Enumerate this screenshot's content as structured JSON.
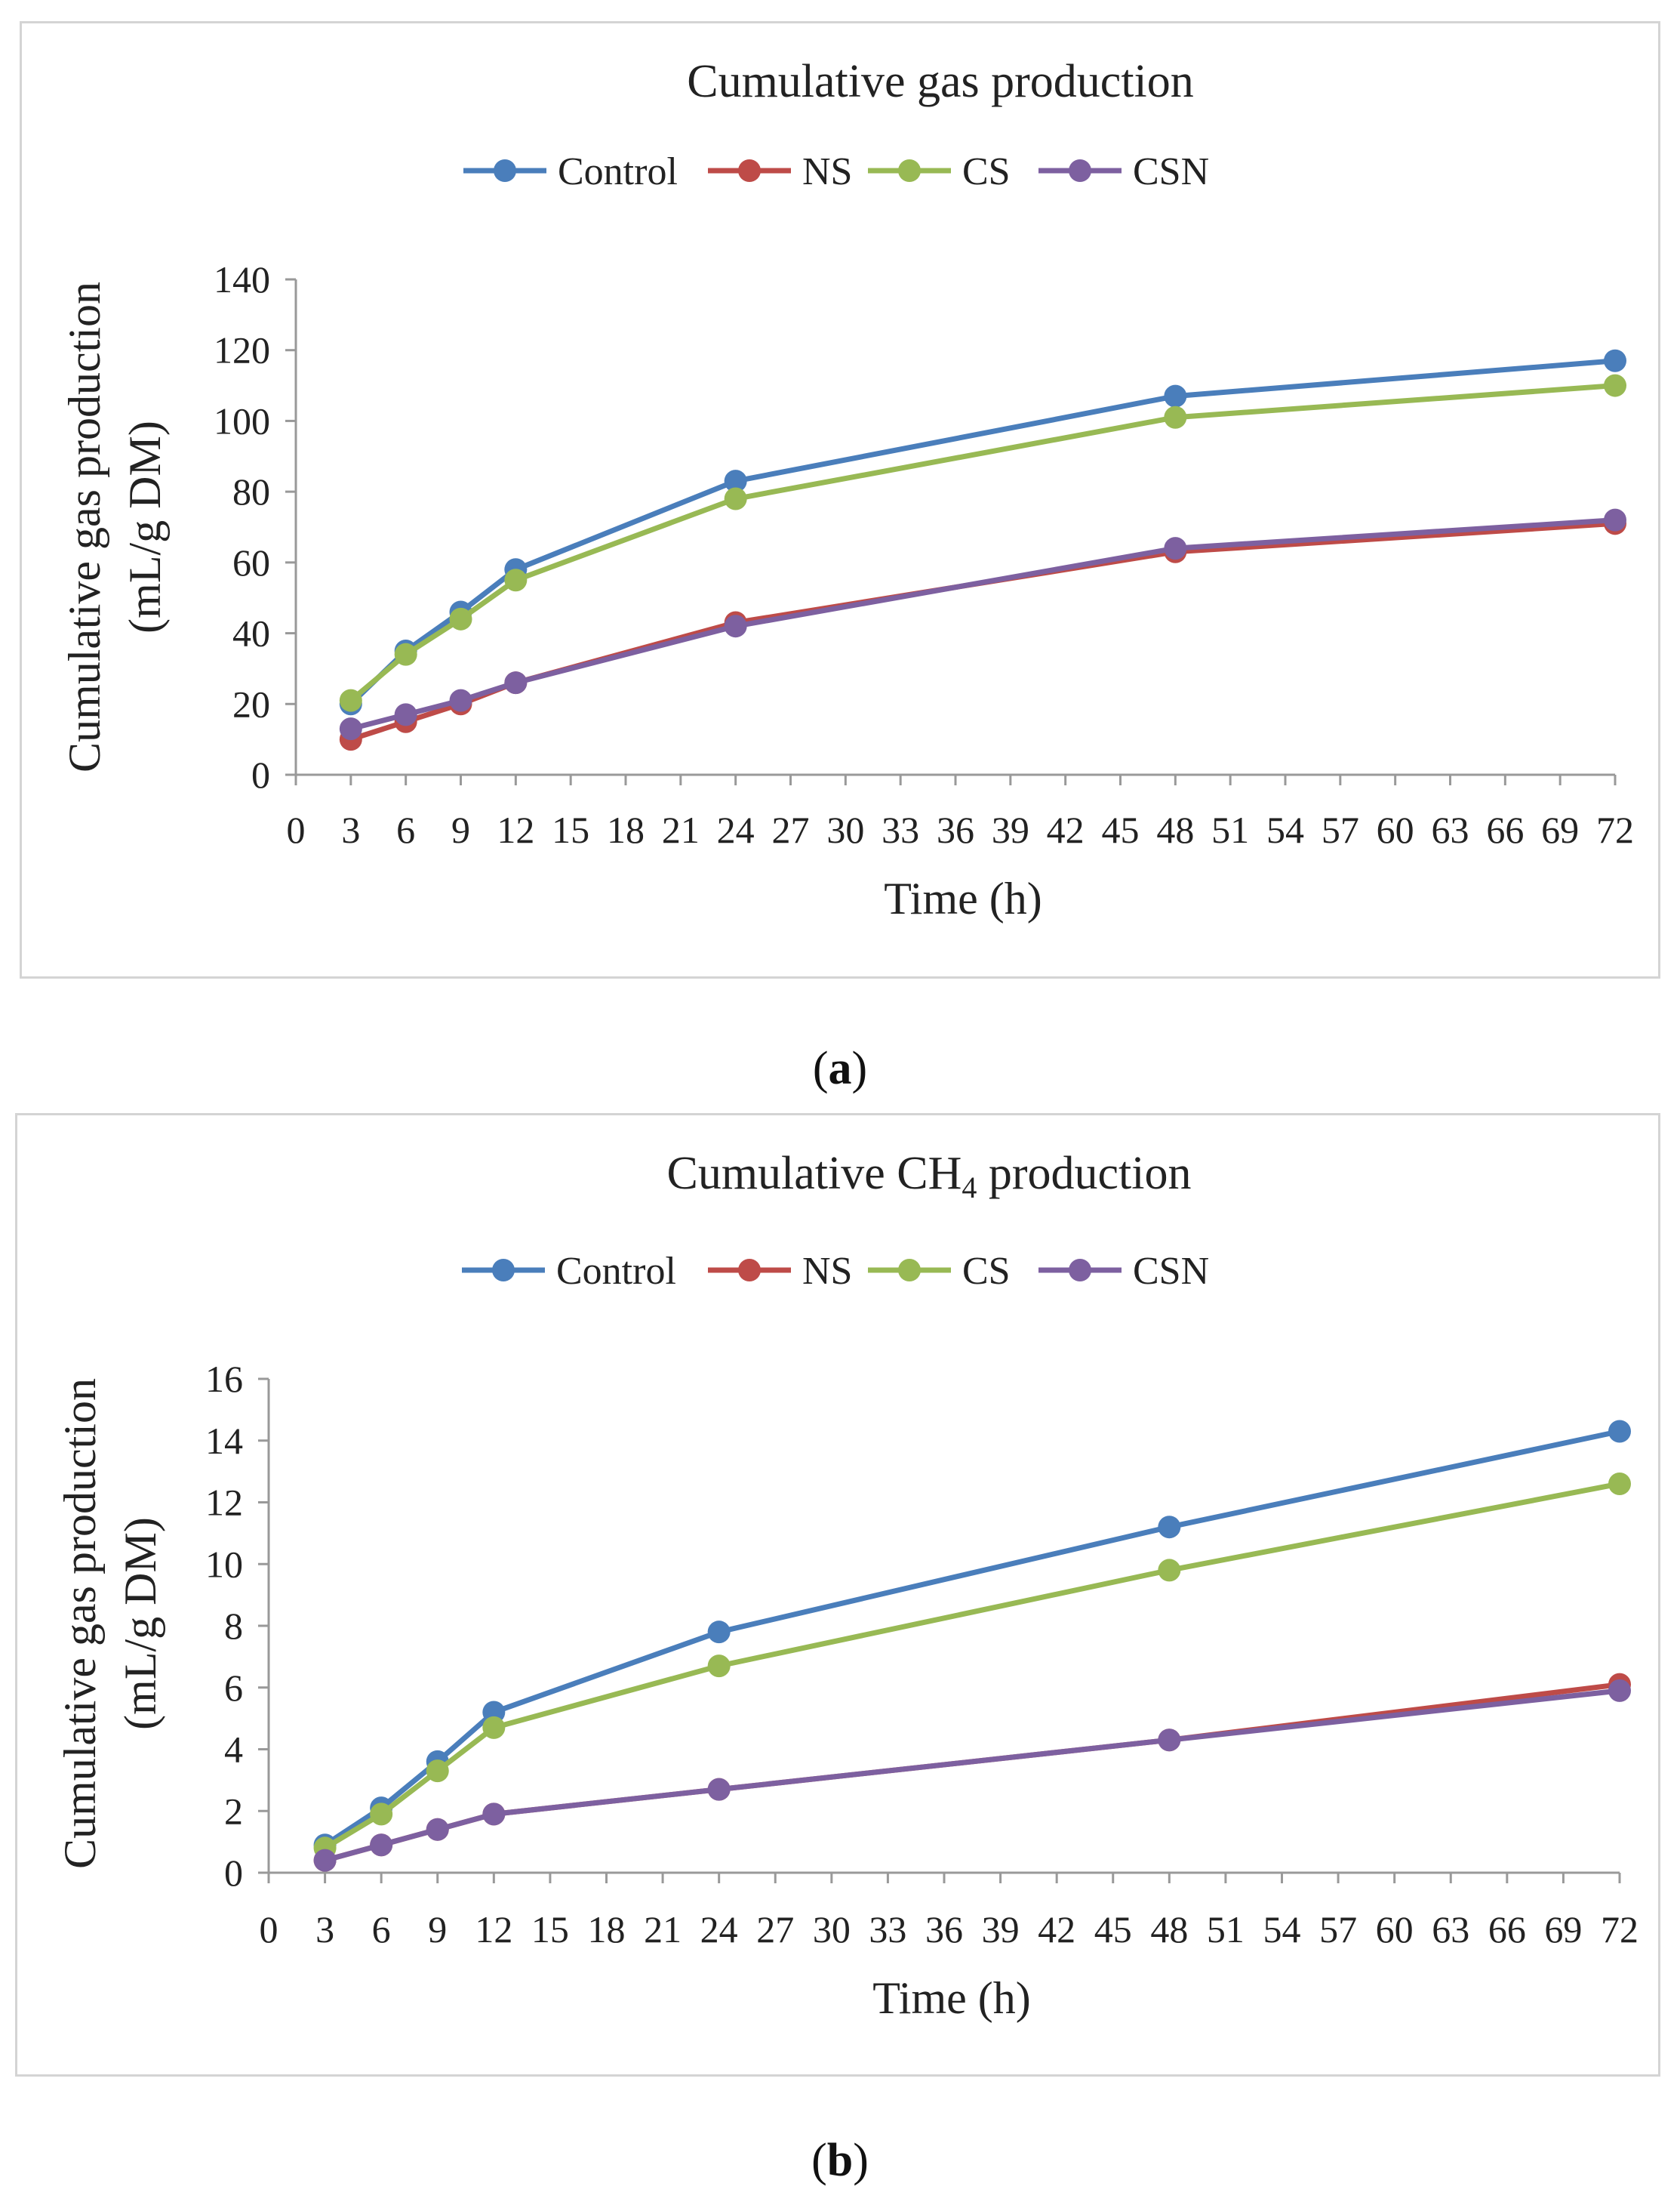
{
  "chart_data": [
    {
      "type": "line",
      "title": "Cumulative gas production",
      "title_sub": "",
      "title_suffix": "",
      "xlabel": "Time (h)",
      "ylabel_line1": "Cumulative gas production",
      "ylabel_line2": "(mL/g DM)",
      "x_ticks": [
        0,
        3,
        6,
        9,
        12,
        15,
        18,
        21,
        24,
        27,
        30,
        33,
        36,
        39,
        42,
        45,
        48,
        51,
        54,
        57,
        60,
        63,
        66,
        69,
        72
      ],
      "xlim": [
        0,
        72
      ],
      "ylim": [
        0,
        140
      ],
      "y_ticks": [
        0,
        20,
        40,
        60,
        80,
        100,
        120,
        140
      ],
      "x": [
        3,
        6,
        9,
        12,
        24,
        48,
        72
      ],
      "legend_position": "top",
      "series": [
        {
          "name": "Control",
          "color": "#4a7ebb",
          "values": [
            20,
            35,
            46,
            58,
            83,
            107,
            117
          ]
        },
        {
          "name": "NS",
          "color": "#be4b48",
          "values": [
            10,
            15,
            20,
            26,
            43,
            63,
            71
          ]
        },
        {
          "name": "CS",
          "color": "#98b954",
          "values": [
            21,
            34,
            44,
            55,
            78,
            101,
            110
          ]
        },
        {
          "name": "CSN",
          "color": "#7d60a0",
          "values": [
            13,
            17,
            21,
            26,
            42,
            64,
            72
          ]
        }
      ],
      "caption": "a"
    },
    {
      "type": "line",
      "title": "Cumulative CH",
      "title_sub": "4",
      "title_suffix": " production",
      "xlabel": "Time (h)",
      "ylabel_line1": "Cumulative gas production",
      "ylabel_line2": "(mL/g DM)",
      "x_ticks": [
        0,
        3,
        6,
        9,
        12,
        15,
        18,
        21,
        24,
        27,
        30,
        33,
        36,
        39,
        42,
        45,
        48,
        51,
        54,
        57,
        60,
        63,
        66,
        69,
        72
      ],
      "xlim": [
        0,
        72
      ],
      "ylim": [
        0,
        16
      ],
      "y_ticks": [
        0,
        2,
        4,
        6,
        8,
        10,
        12,
        14,
        16
      ],
      "x": [
        3,
        6,
        9,
        12,
        24,
        48,
        72
      ],
      "legend_position": "top",
      "series": [
        {
          "name": "Control",
          "color": "#4a7ebb",
          "values": [
            0.9,
            2.1,
            3.6,
            5.2,
            7.8,
            11.2,
            14.3
          ]
        },
        {
          "name": "NS",
          "color": "#be4b48",
          "values": [
            0.4,
            0.9,
            1.4,
            1.9,
            2.7,
            4.3,
            6.1
          ]
        },
        {
          "name": "CS",
          "color": "#98b954",
          "values": [
            0.8,
            1.9,
            3.3,
            4.7,
            6.7,
            9.8,
            12.6
          ]
        },
        {
          "name": "CSN",
          "color": "#7d60a0",
          "values": [
            0.4,
            0.9,
            1.4,
            1.9,
            2.7,
            4.3,
            5.9
          ]
        }
      ],
      "caption": "b"
    }
  ]
}
